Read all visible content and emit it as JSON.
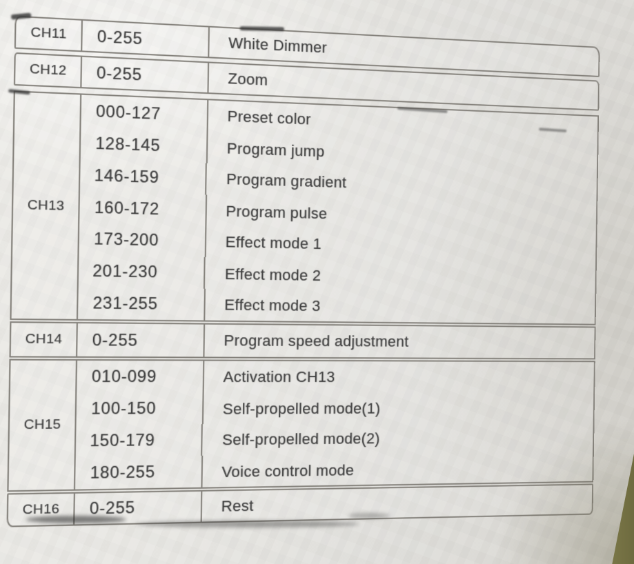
{
  "document": {
    "kind": "dmx-channel-table"
  },
  "table": {
    "rows": [
      {
        "channel": "CH11",
        "entries": [
          {
            "range": "0-255",
            "function": "White Dimmer"
          }
        ]
      },
      {
        "channel": "CH12",
        "entries": [
          {
            "range": "0-255",
            "function": "Zoom"
          }
        ]
      },
      {
        "channel": "CH13",
        "entries": [
          {
            "range": "000-127",
            "function": "Preset color"
          },
          {
            "range": "128-145",
            "function": "Program jump"
          },
          {
            "range": "146-159",
            "function": "Program gradient"
          },
          {
            "range": "160-172",
            "function": "Program pulse"
          },
          {
            "range": "173-200",
            "function": "Effect mode 1"
          },
          {
            "range": "201-230",
            "function": "Effect mode 2"
          },
          {
            "range": "231-255",
            "function": "Effect mode 3"
          }
        ]
      },
      {
        "channel": "CH14",
        "entries": [
          {
            "range": "0-255",
            "function": "Program speed adjustment"
          }
        ]
      },
      {
        "channel": "CH15",
        "entries": [
          {
            "range": "010-099",
            "function": "Activation CH13"
          },
          {
            "range": "100-150",
            "function": "Self-propelled mode(1)"
          },
          {
            "range": "150-179",
            "function": "Self-propelled mode(2)"
          },
          {
            "range": "180-255",
            "function": "Voice control mode"
          }
        ]
      },
      {
        "channel": "CH16",
        "entries": [
          {
            "range": "0-255",
            "function": "Rest"
          }
        ]
      }
    ]
  },
  "colors": {
    "paper": "#e9e8e4",
    "ink": "#3f3f3f",
    "line": "#84817b",
    "desk": "#6e6b3f"
  }
}
